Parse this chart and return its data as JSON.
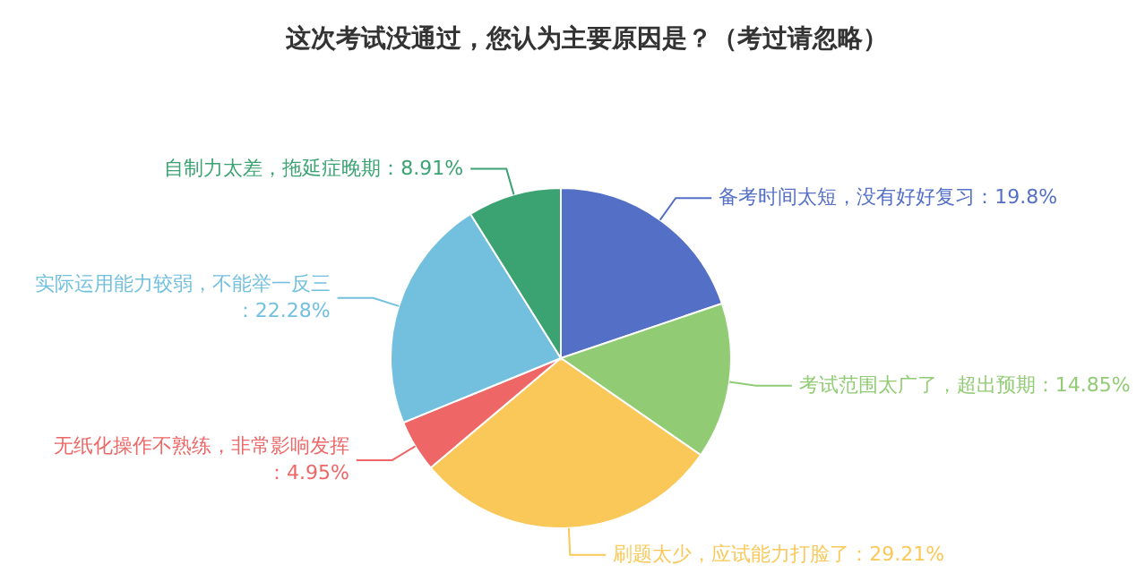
{
  "chart_data": {
    "type": "pie",
    "title": "这次考试没通过，您认为主要原因是？（考过请忽略）",
    "categories": [
      "备考时间太短，没有好好复习",
      "考试范围太广了，超出预期",
      "刷题太少，应试能力打脸了",
      "无纸化操作不熟练，非常影响发挥",
      "实际运用能力较弱，不能举一反三",
      "自制力太差，拖延症晚期"
    ],
    "values": [
      19.8,
      14.85,
      29.21,
      4.95,
      22.28,
      8.91
    ],
    "value_labels": [
      "：19.8%",
      "：14.85%",
      "：29.21%",
      "：4.95%",
      "：22.28%",
      "：8.91%"
    ],
    "colors": [
      "#5470c6",
      "#91cc75",
      "#fac858",
      "#ee6666",
      "#73c0de",
      "#3ba272"
    ]
  }
}
